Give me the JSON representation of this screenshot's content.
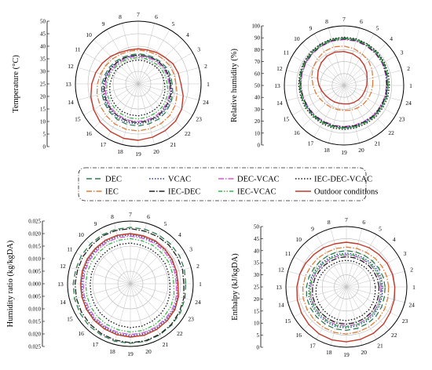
{
  "hours": [
    "1",
    "2",
    "3",
    "4",
    "5",
    "6",
    "7",
    "8",
    "9",
    "10",
    "11",
    "12",
    "13",
    "14",
    "15",
    "16",
    "17",
    "18",
    "19",
    "20",
    "21",
    "22",
    "23",
    "24"
  ],
  "legend": {
    "entries": [
      {
        "label": "DEC",
        "color": "#2e7d4f",
        "dash": "7,4"
      },
      {
        "label": "VCAC",
        "color": "#2b3b9b",
        "dash": "1.5,2"
      },
      {
        "label": "DEC-VCAC",
        "color": "#d05bd6",
        "dash": "7,2,1.5,2"
      },
      {
        "label": "IEC-DEC-VCAC",
        "color": "#111111",
        "dash": "1.5,2.2"
      },
      {
        "label": "IEC",
        "color": "#e07b39",
        "dash": "7,2,1.5,2"
      },
      {
        "label": "IEC-DEC",
        "color": "#222222",
        "dash": "7,2,1.5,2"
      },
      {
        "label": "IEC-VCAC",
        "color": "#3ab54a",
        "dash": "5,2,1.5,2,1.5,2"
      },
      {
        "label": "Outdoor conditions",
        "color": "#c0392b",
        "dash": ""
      }
    ]
  },
  "chart_data": [
    {
      "type": "line",
      "id": "temperature",
      "ylabel": "Temperature (°C)",
      "rmin": 0,
      "rmax": 50,
      "ticks": [
        "50",
        "45",
        "40",
        "35",
        "30",
        "25",
        "20",
        "15",
        "10",
        "5",
        "0"
      ],
      "tick_values": [
        50,
        45,
        40,
        35,
        30,
        25,
        20,
        15,
        10,
        5,
        0
      ],
      "series": [
        {
          "name": "Outdoor conditions",
          "values": [
            34,
            33,
            32,
            30,
            29,
            28,
            28,
            28,
            29,
            31,
            33,
            35,
            37,
            39,
            41,
            43,
            44,
            45,
            45,
            44,
            43,
            42,
            40,
            37
          ]
        },
        {
          "name": "DEC",
          "values": [
            27,
            26.5,
            26,
            25,
            24.5,
            24,
            24,
            24,
            24.5,
            25.5,
            26.5,
            27.5,
            29,
            30,
            31,
            32,
            33,
            33.5,
            33.5,
            33,
            32.5,
            31.5,
            30,
            28.5
          ]
        },
        {
          "name": "VCAC",
          "values": [
            26,
            25.5,
            25,
            24,
            23.5,
            23,
            23,
            23,
            23.5,
            24.5,
            25.5,
            26.5,
            28,
            29,
            30,
            31,
            32,
            32,
            32,
            31.5,
            31,
            30,
            29,
            27.5
          ]
        },
        {
          "name": "DEC-VCAC",
          "values": [
            24.5,
            24,
            23.5,
            23,
            22.5,
            22,
            22,
            22,
            22.5,
            23,
            24,
            25,
            26,
            27,
            28,
            29,
            29.5,
            30,
            30,
            29.5,
            29,
            28,
            27,
            26
          ]
        },
        {
          "name": "IEC-DEC-VCAC",
          "values": [
            21,
            20.5,
            20,
            19.5,
            19,
            19,
            19,
            19,
            19.5,
            20,
            21,
            21.5,
            22.5,
            23.5,
            24.5,
            25,
            25.5,
            25.5,
            25.5,
            25,
            24.5,
            24,
            23,
            22
          ]
        },
        {
          "name": "IEC",
          "values": [
            30,
            29.5,
            29,
            28,
            27.5,
            27,
            27,
            27,
            27.5,
            28.5,
            29.5,
            31,
            32.5,
            34,
            35,
            36,
            37,
            37.5,
            37.5,
            37,
            36.5,
            35.5,
            34,
            32
          ]
        },
        {
          "name": "IEC-DEC",
          "values": [
            25.5,
            25,
            24.5,
            24,
            23.5,
            23,
            23,
            23,
            23.5,
            24,
            25,
            26,
            27,
            28,
            29,
            30,
            30.5,
            31,
            31,
            30.5,
            30,
            29,
            28,
            27
          ]
        },
        {
          "name": "IEC-VCAC",
          "values": [
            23,
            22.5,
            22,
            21.5,
            21,
            21,
            21,
            21,
            21.5,
            22,
            23,
            24,
            25,
            26,
            26.5,
            27,
            27.5,
            28,
            28,
            27.5,
            27,
            26.5,
            25.5,
            24.5
          ]
        }
      ]
    },
    {
      "type": "line",
      "id": "relative-humidity",
      "ylabel": "Relative humidity (%)",
      "rmin": 0,
      "rmax": 100,
      "ticks": [
        "100",
        "90",
        "80",
        "70",
        "60",
        "50",
        "40",
        "30",
        "20",
        "10",
        "0"
      ],
      "tick_values": [
        100,
        90,
        80,
        70,
        60,
        50,
        40,
        30,
        20,
        10,
        0
      ],
      "series": [
        {
          "name": "Outdoor conditions",
          "values": [
            38,
            40,
            44,
            48,
            52,
            55,
            57,
            58,
            57,
            54,
            50,
            46,
            42,
            38,
            35,
            33,
            32,
            31,
            31,
            32,
            33,
            34,
            35,
            36
          ]
        },
        {
          "name": "DEC",
          "values": [
            74,
            75,
            77,
            78,
            79,
            80,
            80,
            80,
            79,
            78,
            77,
            76,
            75,
            74,
            73,
            73,
            72,
            72,
            72,
            72,
            72,
            73,
            73,
            74
          ]
        },
        {
          "name": "VCAC",
          "values": [
            73,
            74,
            76,
            77,
            78,
            79,
            79,
            79,
            78,
            77,
            76,
            75,
            74,
            73,
            72,
            72,
            71,
            71,
            71,
            71,
            71,
            72,
            72,
            73
          ]
        },
        {
          "name": "DEC-VCAC",
          "values": [
            71,
            72,
            74,
            75,
            76,
            77,
            77,
            77,
            76,
            75,
            74,
            73,
            72,
            71,
            70,
            70,
            69,
            69,
            69,
            69,
            69,
            70,
            70,
            71
          ]
        },
        {
          "name": "IEC-DEC-VCAC",
          "values": [
            76,
            77,
            78,
            79,
            80,
            81,
            81,
            81,
            80,
            79,
            78,
            77,
            76,
            75,
            75,
            74,
            74,
            74,
            74,
            74,
            74,
            75,
            75,
            76
          ]
        },
        {
          "name": "IEC",
          "values": [
            48,
            50,
            54,
            58,
            61,
            64,
            66,
            67,
            66,
            63,
            60,
            56,
            52,
            49,
            46,
            44,
            43,
            42,
            42,
            43,
            44,
            45,
            46,
            47
          ]
        },
        {
          "name": "IEC-DEC",
          "values": [
            72,
            73,
            75,
            76,
            77,
            78,
            78,
            78,
            77,
            76,
            75,
            74,
            73,
            72,
            71,
            71,
            70,
            70,
            70,
            70,
            70,
            71,
            71,
            72
          ]
        },
        {
          "name": "IEC-VCAC",
          "values": [
            74,
            75,
            76,
            77,
            78,
            79,
            79,
            79,
            78,
            77,
            76,
            75,
            74,
            73,
            73,
            72,
            72,
            72,
            72,
            72,
            72,
            73,
            73,
            74
          ]
        }
      ]
    },
    {
      "type": "line",
      "id": "humidity-ratio",
      "ylabel": "Humidity ratio (kg/kgDA)",
      "rmin": -0.025,
      "rmax": 0.025,
      "ticks": [
        "0.025",
        "0.020",
        "0.015",
        "0.010",
        "0.005",
        "0.000",
        "0.005",
        "0.010",
        "0.015",
        "0.020",
        "0.025"
      ],
      "tick_values": [
        0.025,
        0.02,
        0.015,
        0.01,
        0.005,
        0.0,
        -0.005,
        -0.01,
        -0.015,
        -0.02,
        -0.025
      ],
      "series": [
        {
          "name": "Outdoor conditions",
          "values": [
            0.013,
            0.013,
            0.0135,
            0.014,
            0.0145,
            0.0145,
            0.015,
            0.015,
            0.015,
            0.0145,
            0.0145,
            0.0145,
            0.0145,
            0.015,
            0.0155,
            0.016,
            0.0165,
            0.017,
            0.0175,
            0.0175,
            0.017,
            0.0165,
            0.016,
            0.0145
          ]
        },
        {
          "name": "DEC",
          "values": [
            0.019,
            0.0195,
            0.02,
            0.02,
            0.02,
            0.02,
            0.02,
            0.02,
            0.02,
            0.02,
            0.02,
            0.02,
            0.0205,
            0.021,
            0.0215,
            0.022,
            0.022,
            0.0225,
            0.0225,
            0.0225,
            0.022,
            0.0215,
            0.021,
            0.02
          ]
        },
        {
          "name": "VCAC",
          "values": [
            0.0125,
            0.0125,
            0.013,
            0.0135,
            0.0135,
            0.0135,
            0.014,
            0.014,
            0.014,
            0.0135,
            0.0135,
            0.0135,
            0.0135,
            0.014,
            0.0145,
            0.015,
            0.0155,
            0.016,
            0.0165,
            0.0165,
            0.016,
            0.0155,
            0.015,
            0.014
          ]
        },
        {
          "name": "DEC-VCAC",
          "values": [
            0.0115,
            0.0115,
            0.012,
            0.0125,
            0.0125,
            0.0125,
            0.013,
            0.013,
            0.013,
            0.0125,
            0.0125,
            0.0125,
            0.0125,
            0.013,
            0.0135,
            0.014,
            0.0145,
            0.015,
            0.0155,
            0.0155,
            0.015,
            0.0145,
            0.014,
            0.013
          ]
        },
        {
          "name": "IEC-DEC-VCAC",
          "values": [
            0.0065,
            0.0065,
            0.007,
            0.007,
            0.007,
            0.007,
            0.0075,
            0.0075,
            0.0075,
            0.007,
            0.007,
            0.007,
            0.007,
            0.0075,
            0.008,
            0.0085,
            0.009,
            0.0095,
            0.01,
            0.01,
            0.0095,
            0.009,
            0.0085,
            0.0075
          ]
        },
        {
          "name": "IEC",
          "values": [
            0.013,
            0.013,
            0.0135,
            0.014,
            0.0145,
            0.0145,
            0.015,
            0.015,
            0.015,
            0.0145,
            0.0145,
            0.0145,
            0.0145,
            0.015,
            0.0155,
            0.016,
            0.0165,
            0.017,
            0.0175,
            0.0175,
            0.017,
            0.0165,
            0.016,
            0.0145
          ]
        },
        {
          "name": "IEC-DEC",
          "values": [
            0.0175,
            0.018,
            0.018,
            0.0185,
            0.0185,
            0.0185,
            0.019,
            0.019,
            0.019,
            0.0185,
            0.0185,
            0.0185,
            0.019,
            0.0195,
            0.02,
            0.0205,
            0.021,
            0.0215,
            0.022,
            0.022,
            0.0215,
            0.021,
            0.02,
            0.019
          ]
        },
        {
          "name": "IEC-VCAC",
          "values": [
            0.0095,
            0.0095,
            0.01,
            0.01,
            0.0105,
            0.0105,
            0.011,
            0.011,
            0.011,
            0.0105,
            0.0105,
            0.0105,
            0.0105,
            0.011,
            0.0115,
            0.012,
            0.0125,
            0.013,
            0.0135,
            0.0135,
            0.013,
            0.0125,
            0.012,
            0.011
          ]
        }
      ]
    },
    {
      "type": "line",
      "id": "enthalpy",
      "ylabel": "Enthalpy (kJ/kgDA)",
      "rmin": 0,
      "rmax": 50,
      "ticks": [
        "50",
        "45",
        "40",
        "35",
        "30",
        "25",
        "20",
        "15",
        "10",
        "5",
        "0"
      ],
      "tick_values": [
        50,
        45,
        40,
        35,
        30,
        25,
        20,
        15,
        10,
        5,
        0
      ],
      "series": [
        {
          "name": "Outdoor conditions",
          "values": [
            40,
            39.5,
            39,
            38,
            37.5,
            37,
            37,
            37,
            37.5,
            38,
            39,
            40,
            41,
            42,
            43,
            44,
            45,
            45.5,
            45.5,
            45,
            44.5,
            43.5,
            42,
            41
          ]
        },
        {
          "name": "DEC",
          "values": [
            32,
            31.5,
            31,
            30.5,
            30,
            30,
            30,
            30,
            30,
            30.5,
            31,
            32,
            33,
            34,
            34.5,
            35,
            35.5,
            36,
            36,
            35.5,
            35,
            34.5,
            33.5,
            32.5
          ]
        },
        {
          "name": "VCAC",
          "values": [
            30,
            29.5,
            29,
            28.5,
            28,
            28,
            28,
            28,
            28,
            28.5,
            29,
            30,
            31,
            32,
            32.5,
            33,
            33.5,
            34,
            34,
            33.5,
            33,
            32.5,
            31.5,
            30.5
          ]
        },
        {
          "name": "DEC-VCAC",
          "values": [
            28.5,
            28,
            27.5,
            27,
            26.5,
            26.5,
            26.5,
            26.5,
            26.5,
            27,
            27.5,
            28.5,
            29.5,
            30.5,
            31,
            31.5,
            32,
            32.5,
            32.5,
            32,
            31.5,
            31,
            30,
            29
          ]
        },
        {
          "name": "IEC-DEC-VCAC",
          "values": [
            24,
            23.5,
            23,
            22.5,
            22,
            22,
            22,
            22,
            22,
            22.5,
            23,
            24,
            25,
            26,
            26.5,
            27,
            27.5,
            28,
            28,
            27.5,
            27,
            26.5,
            25.5,
            24.5
          ]
        },
        {
          "name": "IEC",
          "values": [
            35,
            34.5,
            34,
            33.5,
            33,
            33,
            33,
            33,
            33,
            33.5,
            34,
            35,
            36,
            37,
            37.5,
            38,
            38.5,
            39,
            39,
            38.5,
            38,
            37.5,
            36.5,
            35.5
          ]
        },
        {
          "name": "IEC-DEC",
          "values": [
            27,
            26.5,
            26,
            25.5,
            25,
            25,
            25,
            25,
            25,
            25.5,
            26,
            27,
            28,
            29,
            29.5,
            30,
            30.5,
            31,
            31,
            30.5,
            30,
            29.5,
            28.5,
            27.5
          ]
        },
        {
          "name": "IEC-VCAC",
          "values": [
            29,
            28.5,
            28,
            27.5,
            27,
            27,
            27,
            27,
            27,
            27.5,
            28,
            29,
            30,
            31,
            31.5,
            32,
            32.5,
            33,
            33,
            32.5,
            32,
            31.5,
            30.5,
            29.5
          ]
        }
      ]
    }
  ]
}
